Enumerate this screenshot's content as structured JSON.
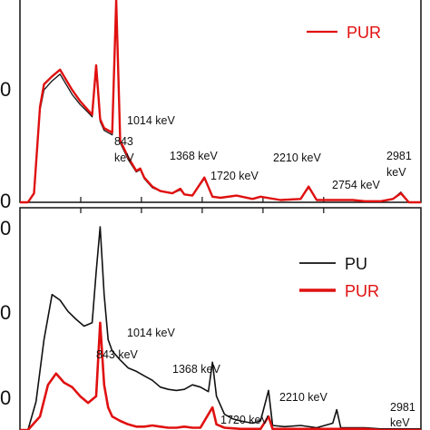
{
  "colors": {
    "PU": "#111111",
    "PUR": "#e01010"
  },
  "chart_data": [
    {
      "panel": "top",
      "type": "line",
      "title": "",
      "xlabel": "",
      "ylabel": "",
      "y_tick_labels": [
        "0",
        "0"
      ],
      "legend": {
        "entries": [
          "PUR"
        ],
        "placement": "top-right"
      },
      "annotations": [
        "1014 keV",
        "843 keV",
        "1368 keV",
        "1720 keV",
        "2210 keV",
        "2754 keV",
        "2981 keV"
      ],
      "series": [
        {
          "name": "PUR",
          "points": [
            [
              0.0,
              0
            ],
            [
              0.02,
              0
            ],
            [
              0.035,
              8
            ],
            [
              0.05,
              85
            ],
            [
              0.06,
              105
            ],
            [
              0.08,
              112
            ],
            [
              0.1,
              118
            ],
            [
              0.11,
              112
            ],
            [
              0.13,
              100
            ],
            [
              0.15,
              90
            ],
            [
              0.17,
              82
            ],
            [
              0.18,
              78
            ],
            [
              0.19,
              122
            ],
            [
              0.2,
              74
            ],
            [
              0.21,
              66
            ],
            [
              0.23,
              62
            ],
            [
              0.24,
              180
            ],
            [
              0.25,
              55
            ],
            [
              0.27,
              40
            ],
            [
              0.29,
              28
            ],
            [
              0.3,
              30
            ],
            [
              0.31,
              22
            ],
            [
              0.33,
              14
            ],
            [
              0.35,
              10
            ],
            [
              0.38,
              8
            ],
            [
              0.4,
              12
            ],
            [
              0.41,
              7
            ],
            [
              0.43,
              6
            ],
            [
              0.46,
              22
            ],
            [
              0.48,
              5
            ],
            [
              0.5,
              4
            ],
            [
              0.54,
              6
            ],
            [
              0.58,
              3
            ],
            [
              0.6,
              5
            ],
            [
              0.65,
              2
            ],
            [
              0.7,
              3
            ],
            [
              0.72,
              14
            ],
            [
              0.74,
              2
            ],
            [
              0.8,
              2
            ],
            [
              0.83,
              2
            ],
            [
              0.86,
              1
            ],
            [
              0.9,
              1
            ],
            [
              0.93,
              3
            ],
            [
              0.95,
              8
            ],
            [
              0.97,
              0
            ],
            [
              1.0,
              0
            ]
          ]
        },
        {
          "name": "",
          "points": [
            [
              0.0,
              0
            ],
            [
              0.02,
              0
            ],
            [
              0.035,
              8
            ],
            [
              0.05,
              82
            ],
            [
              0.06,
              100
            ],
            [
              0.08,
              108
            ],
            [
              0.1,
              114
            ],
            [
              0.11,
              108
            ],
            [
              0.13,
              96
            ],
            [
              0.15,
              87
            ],
            [
              0.17,
              80
            ],
            [
              0.18,
              76
            ],
            [
              0.19,
              118
            ],
            [
              0.2,
              72
            ],
            [
              0.21,
              64
            ],
            [
              0.23,
              60
            ],
            [
              0.24,
              175
            ],
            [
              0.25,
              53
            ],
            [
              0.27,
              38
            ],
            [
              0.29,
              27
            ],
            [
              0.3,
              29
            ],
            [
              0.31,
              21
            ],
            [
              0.33,
              13
            ],
            [
              0.35,
              10
            ],
            [
              0.38,
              8
            ],
            [
              0.4,
              11
            ],
            [
              0.41,
              7
            ],
            [
              0.43,
              6
            ],
            [
              0.46,
              21
            ],
            [
              0.48,
              5
            ],
            [
              0.5,
              4
            ],
            [
              0.54,
              6
            ],
            [
              0.58,
              3
            ],
            [
              0.6,
              5
            ],
            [
              0.65,
              2
            ],
            [
              0.7,
              3
            ],
            [
              0.72,
              13
            ],
            [
              0.74,
              2
            ],
            [
              0.8,
              2
            ],
            [
              0.83,
              2
            ],
            [
              0.86,
              1
            ],
            [
              0.9,
              1
            ],
            [
              0.93,
              3
            ],
            [
              0.95,
              9
            ],
            [
              0.97,
              0
            ],
            [
              1.0,
              0
            ]
          ]
        }
      ]
    },
    {
      "panel": "bottom",
      "type": "line",
      "title": "",
      "xlabel": "",
      "ylabel": "",
      "y_tick_labels": [
        "0",
        "0",
        "0"
      ],
      "legend": {
        "entries": [
          "PU",
          "PUR"
        ],
        "placement": "right"
      },
      "annotations": [
        "1014 keV",
        "843 keV",
        "1368 keV",
        "1720 keV",
        "2210 keV",
        "2981 keV"
      ],
      "series": [
        {
          "name": "PU",
          "points": [
            [
              0.0,
              0
            ],
            [
              0.02,
              0
            ],
            [
              0.04,
              25
            ],
            [
              0.06,
              80
            ],
            [
              0.08,
              120
            ],
            [
              0.1,
              115
            ],
            [
              0.12,
              105
            ],
            [
              0.14,
              98
            ],
            [
              0.16,
              92
            ],
            [
              0.18,
              95
            ],
            [
              0.19,
              140
            ],
            [
              0.2,
              180
            ],
            [
              0.21,
              120
            ],
            [
              0.22,
              80
            ],
            [
              0.23,
              70
            ],
            [
              0.25,
              62
            ],
            [
              0.27,
              55
            ],
            [
              0.29,
              52
            ],
            [
              0.31,
              48
            ],
            [
              0.33,
              44
            ],
            [
              0.35,
              38
            ],
            [
              0.37,
              36
            ],
            [
              0.39,
              35
            ],
            [
              0.41,
              36
            ],
            [
              0.43,
              40
            ],
            [
              0.45,
              38
            ],
            [
              0.47,
              34
            ],
            [
              0.48,
              60
            ],
            [
              0.49,
              30
            ],
            [
              0.51,
              14
            ],
            [
              0.53,
              10
            ],
            [
              0.55,
              8
            ],
            [
              0.58,
              6
            ],
            [
              0.6,
              8
            ],
            [
              0.62,
              35
            ],
            [
              0.63,
              4
            ],
            [
              0.66,
              3
            ],
            [
              0.7,
              4
            ],
            [
              0.74,
              2
            ],
            [
              0.78,
              6
            ],
            [
              0.79,
              18
            ],
            [
              0.8,
              2
            ],
            [
              0.86,
              2
            ],
            [
              0.9,
              1
            ],
            [
              0.97,
              1
            ],
            [
              1.0,
              1
            ]
          ]
        },
        {
          "name": "PUR",
          "points": [
            [
              0.0,
              0
            ],
            [
              0.02,
              0
            ],
            [
              0.05,
              12
            ],
            [
              0.07,
              40
            ],
            [
              0.09,
              50
            ],
            [
              0.11,
              42
            ],
            [
              0.13,
              38
            ],
            [
              0.15,
              30
            ],
            [
              0.17,
              24
            ],
            [
              0.19,
              30
            ],
            [
              0.2,
              95
            ],
            [
              0.21,
              40
            ],
            [
              0.22,
              20
            ],
            [
              0.23,
              12
            ],
            [
              0.25,
              8
            ],
            [
              0.27,
              5
            ],
            [
              0.29,
              3
            ],
            [
              0.31,
              3
            ],
            [
              0.33,
              4
            ],
            [
              0.35,
              3
            ],
            [
              0.37,
              2
            ],
            [
              0.39,
              2
            ],
            [
              0.41,
              3
            ],
            [
              0.43,
              2
            ],
            [
              0.45,
              2
            ],
            [
              0.48,
              20
            ],
            [
              0.49,
              5
            ],
            [
              0.51,
              2
            ],
            [
              0.55,
              1
            ],
            [
              0.58,
              1
            ],
            [
              0.6,
              1
            ],
            [
              0.62,
              12
            ],
            [
              0.63,
              1
            ],
            [
              0.66,
              1
            ],
            [
              0.7,
              1
            ],
            [
              0.78,
              1
            ],
            [
              0.8,
              1
            ],
            [
              0.86,
              1
            ],
            [
              0.9,
              0
            ],
            [
              0.97,
              0
            ],
            [
              1.0,
              0
            ]
          ]
        }
      ]
    }
  ],
  "labels": {
    "top_legend_pur": "PUR",
    "bottom_legend_pu": "PU",
    "bottom_legend_pur": "PUR"
  }
}
